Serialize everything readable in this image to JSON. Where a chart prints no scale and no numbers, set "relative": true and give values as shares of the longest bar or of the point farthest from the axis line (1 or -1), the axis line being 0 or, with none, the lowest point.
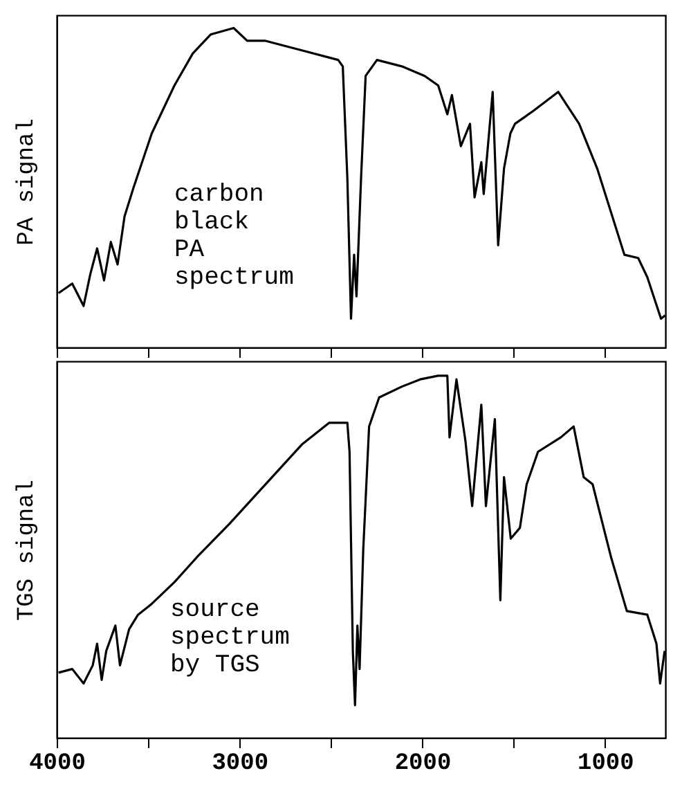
{
  "chart_data": [
    {
      "type": "line",
      "relative": true,
      "ylabel": "PA signal",
      "annotations": [
        "carbon\n black\nPA\nspectrum"
      ],
      "xlim": [
        4000,
        670
      ],
      "xticks": [
        4000,
        {
          "value": 3500,
          "label": null
        },
        3000,
        {
          "value": 2500,
          "label": null
        },
        2000,
        {
          "value": 1500,
          "label": null
        },
        1000
      ],
      "tick_labels": false,
      "marker": "none",
      "line_style": "solid",
      "grid": false,
      "series": [
        {
          "color": "#000000",
          "x": [
            3990,
            3915,
            3853,
            3816,
            3779,
            3741,
            3704,
            3667,
            3629,
            3580,
            3480,
            3356,
            3256,
            3157,
            3032,
            2958,
            2858,
            2659,
            2460,
            2435,
            2410,
            2390,
            2373,
            2360,
            2335,
            2310,
            2248,
            2112,
            1987,
            1913,
            1863,
            1838,
            1789,
            1739,
            1714,
            1677,
            1664,
            1615,
            1585,
            1553,
            1518,
            1493,
            1394,
            1256,
            1142,
            1043,
            894,
            819,
            769,
            694,
            672
          ],
          "values": [
            0.17,
            0.2,
            0.13,
            0.23,
            0.31,
            0.21,
            0.33,
            0.26,
            0.41,
            0.5,
            0.67,
            0.82,
            0.92,
            0.98,
            1.0,
            0.96,
            0.96,
            0.93,
            0.9,
            0.88,
            0.53,
            0.09,
            0.29,
            0.16,
            0.53,
            0.85,
            0.9,
            0.88,
            0.85,
            0.82,
            0.73,
            0.79,
            0.63,
            0.7,
            0.47,
            0.58,
            0.48,
            0.8,
            0.32,
            0.56,
            0.67,
            0.7,
            0.74,
            0.8,
            0.7,
            0.56,
            0.29,
            0.28,
            0.22,
            0.09,
            0.1
          ]
        }
      ]
    },
    {
      "type": "line",
      "relative": true,
      "ylabel": "TGS signal",
      "annotations": [
        " source\nspectrum\nby TGS"
      ],
      "xlim": [
        4000,
        670
      ],
      "xticks": [
        4000,
        {
          "value": 3500,
          "label": null
        },
        3000,
        {
          "value": 2500,
          "label": null
        },
        2000,
        {
          "value": 1500,
          "label": null
        },
        1000
      ],
      "tick_labels": "x",
      "marker": "none",
      "line_style": "solid",
      "grid": false,
      "series": [
        {
          "color": "#000000",
          "x": [
            3990,
            3915,
            3853,
            3803,
            3779,
            3754,
            3729,
            3679,
            3654,
            3604,
            3555,
            3480,
            3356,
            3231,
            3057,
            2858,
            2659,
            2510,
            2410,
            2398,
            2380,
            2368,
            2355,
            2343,
            2323,
            2291,
            2236,
            2112,
            2012,
            1913,
            1863,
            1851,
            1813,
            1764,
            1727,
            1677,
            1652,
            1603,
            1573,
            1553,
            1516,
            1466,
            1429,
            1367,
            1242,
            1172,
            1117,
            1068,
            968,
            881,
            769,
            719,
            699,
            674
          ],
          "values": [
            0.18,
            0.19,
            0.15,
            0.2,
            0.26,
            0.16,
            0.24,
            0.31,
            0.2,
            0.3,
            0.34,
            0.37,
            0.43,
            0.5,
            0.59,
            0.7,
            0.81,
            0.87,
            0.87,
            0.79,
            0.24,
            0.09,
            0.31,
            0.19,
            0.52,
            0.86,
            0.94,
            0.97,
            0.99,
            1.0,
            1.0,
            0.83,
            0.99,
            0.82,
            0.64,
            0.92,
            0.64,
            0.88,
            0.38,
            0.72,
            0.55,
            0.58,
            0.7,
            0.79,
            0.83,
            0.86,
            0.72,
            0.7,
            0.5,
            0.35,
            0.34,
            0.26,
            0.15,
            0.24
          ]
        }
      ]
    }
  ]
}
